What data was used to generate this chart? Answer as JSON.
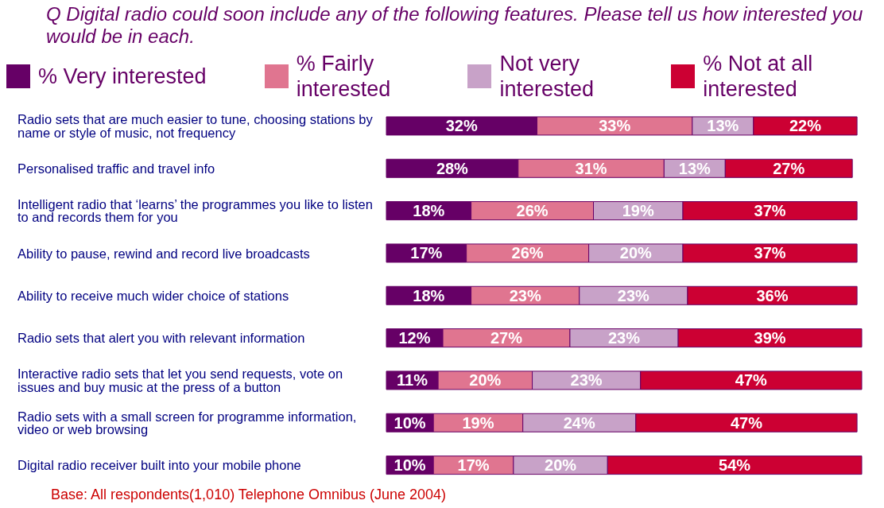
{
  "chart_data": {
    "type": "bar",
    "orientation": "horizontal",
    "stacked": true,
    "title": "Q  Digital radio could soon include any of the following features.  Please tell us how interested you would be in each.",
    "categories": [
      "Radio sets that are much easier to tune, choosing stations by name or style of music, not frequency",
      "Personalised traffic and travel info",
      "Intelligent radio that ‘learns’ the programmes you like to listen to and records them for you",
      "Ability to pause, rewind and record live broadcasts",
      "Ability to receive much wider choice of stations",
      "Radio sets that alert you with relevant information",
      "Interactive radio sets that let you send requests, vote on issues and buy music at the press of a button",
      "Radio sets with a small screen for programme information, video or web browsing",
      "Digital radio receiver built into your mobile phone"
    ],
    "series": [
      {
        "name": "% Very interested",
        "color": "#660066",
        "values": [
          32,
          28,
          18,
          17,
          18,
          12,
          11,
          10,
          10
        ],
        "value_labels": [
          "32%",
          "28%",
          "18%",
          "17%",
          "18%",
          "12%",
          "11%",
          "10%",
          "10%"
        ]
      },
      {
        "name": "% Fairly interested",
        "color": "#e07590",
        "values": [
          33,
          31,
          26,
          26,
          23,
          27,
          20,
          19,
          17
        ],
        "value_labels": [
          "33%",
          "31%",
          "26%",
          "26%",
          "23%",
          "27%",
          "20%",
          "19%",
          "17%"
        ]
      },
      {
        "name": "Not very interested",
        "color": "#c8a2c8",
        "values": [
          13,
          13,
          19,
          20,
          23,
          23,
          23,
          24,
          20
        ],
        "value_labels": [
          "13%",
          "13%",
          "19%",
          "20%",
          "23%",
          "23%",
          "23%",
          "24%",
          "20%"
        ]
      },
      {
        "name": "% Not at all interested",
        "color": "#cc0033",
        "values": [
          22,
          27,
          37,
          37,
          36,
          39,
          47,
          47,
          54
        ],
        "value_labels": [
          "22%",
          "27%",
          "37%",
          "37%",
          "36%",
          "39%",
          "47%",
          "47%",
          "54%"
        ]
      }
    ],
    "legend": "top",
    "annotations": [
      "Base: All respondents(1,010) Telephone Omnibus (June 2004)"
    ]
  }
}
